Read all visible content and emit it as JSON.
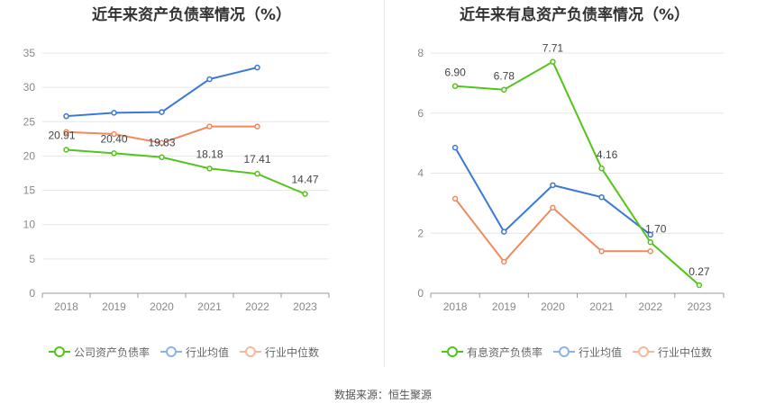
{
  "source_label": "数据来源：恒生聚源",
  "chart_data": [
    {
      "type": "line",
      "title": "近年来资产负债率情况（%）",
      "categories": [
        "2018",
        "2019",
        "2020",
        "2021",
        "2022",
        "2023"
      ],
      "ylim": [
        0,
        35
      ],
      "yticks": [
        "0",
        "5",
        "10",
        "15",
        "20",
        "25",
        "30",
        "35"
      ],
      "grid": true,
      "legend_position": "bottom-left",
      "series": [
        {
          "name": "公司资产负债率",
          "color": "#52c41a",
          "values": [
            20.91,
            20.4,
            19.83,
            18.18,
            17.41,
            14.47
          ],
          "labels": [
            "20.91",
            "20.40",
            "19.83",
            "18.18",
            "17.41",
            "14.47"
          ]
        },
        {
          "name": "行业均值",
          "color": "#3b78d8",
          "values": [
            25.8,
            26.3,
            26.4,
            31.2,
            32.9,
            null
          ],
          "labels": []
        },
        {
          "name": "行业中位数",
          "color": "#f08a5d",
          "values": [
            23.5,
            23.2,
            21.9,
            24.3,
            24.3,
            null
          ],
          "labels": []
        }
      ]
    },
    {
      "type": "line",
      "title": "近年来有息资产负债率情况（%）",
      "categories": [
        "2018",
        "2019",
        "2020",
        "2021",
        "2022",
        "2023"
      ],
      "ylim": [
        0,
        8
      ],
      "yticks": [
        "0",
        "2",
        "4",
        "6",
        "8"
      ],
      "grid": true,
      "legend_position": "bottom-left",
      "series": [
        {
          "name": "有息资产负债率",
          "color": "#52c41a",
          "values": [
            6.9,
            6.78,
            7.71,
            4.16,
            1.7,
            0.27
          ],
          "labels": [
            "6.90",
            "6.78",
            "7.71",
            "4.16",
            "1.70",
            "0.27"
          ]
        },
        {
          "name": "行业均值",
          "color": "#3b78d8",
          "values": [
            4.85,
            2.05,
            3.6,
            3.2,
            1.95,
            null
          ],
          "labels": []
        },
        {
          "name": "行业中位数",
          "color": "#f08a5d",
          "values": [
            3.15,
            1.05,
            2.85,
            1.4,
            1.4,
            null
          ],
          "labels": []
        }
      ]
    }
  ]
}
